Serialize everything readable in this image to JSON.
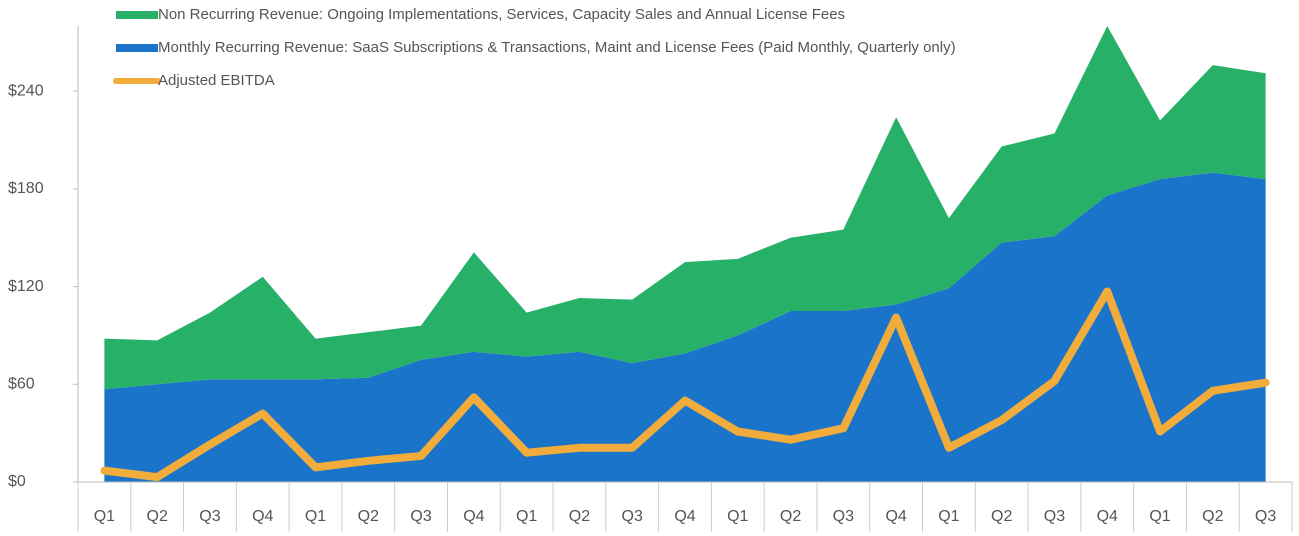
{
  "chart_data": {
    "type": "stacked_area_line",
    "categories": [
      "Q1",
      "Q2",
      "Q3",
      "Q4",
      "Q1",
      "Q2",
      "Q3",
      "Q4",
      "Q1",
      "Q2",
      "Q3",
      "Q4",
      "Q1",
      "Q2",
      "Q3",
      "Q4",
      "Q1",
      "Q2",
      "Q3",
      "Q4",
      "Q1",
      "Q2",
      "Q3"
    ],
    "series": [
      {
        "name": "Monthly Recurring Revenue: SaaS Subscriptions & Transactions, Maint and License Fees (Paid Monthly, Quarterly only)",
        "color": "#1a74c9",
        "kind": "area",
        "values": [
          57,
          60,
          63,
          63,
          63,
          64,
          75,
          80,
          77,
          80,
          73,
          79,
          90,
          105,
          105,
          109,
          119,
          147,
          151,
          176,
          186,
          190,
          186
        ]
      },
      {
        "name": "Non Recurring Revenue: Ongoing Implementations, Services, Capacity Sales and Annual License Fees",
        "color": "#27b068",
        "kind": "area",
        "values": [
          31,
          27,
          41,
          63,
          25,
          28,
          21,
          61,
          27,
          33,
          39,
          56,
          47,
          45,
          50,
          115,
          43,
          59,
          63,
          104,
          36,
          66,
          65
        ]
      },
      {
        "name": "Adjusted EBITDA",
        "color": "#f2ac3c",
        "kind": "line",
        "values": [
          7,
          3,
          23,
          42,
          9,
          13,
          16,
          52,
          18,
          21,
          21,
          50,
          31,
          26,
          33,
          101,
          21,
          38,
          62,
          117,
          31,
          56,
          61
        ]
      }
    ],
    "legend_order": [
      1,
      0,
      2
    ],
    "ylim": [
      0,
      280
    ],
    "yticks": [
      {
        "value": 0,
        "label": "$0"
      },
      {
        "value": 60,
        "label": "$60"
      },
      {
        "value": 120,
        "label": "$120"
      },
      {
        "value": 180,
        "label": "$180"
      },
      {
        "value": 240,
        "label": "$240"
      }
    ]
  }
}
